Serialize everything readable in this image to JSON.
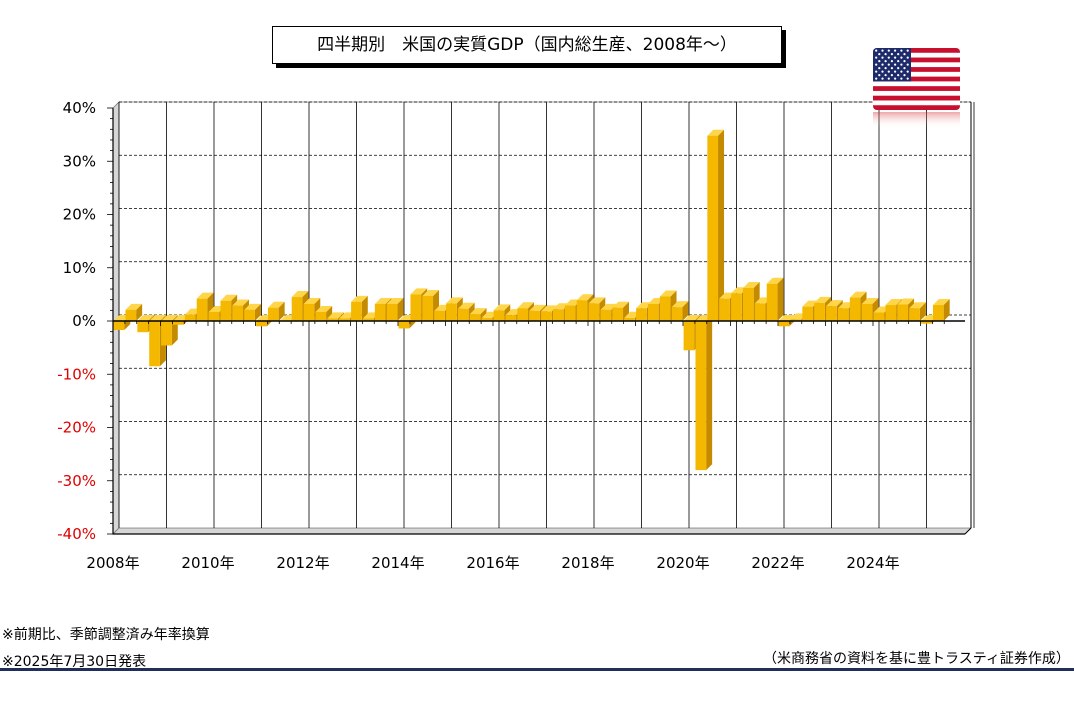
{
  "title": "四半期別　米国の実質GDP（国内総生産、2008年～）",
  "notes": {
    "note1": "※前期比、季節調整済み年率換算",
    "note2": "※2025年7月30日発表",
    "source": "（米商務省の資料を基に豊トラスティ証券作成）"
  },
  "flag_icon": "us-flag-icon",
  "colors": {
    "bar": "#F5B800",
    "bar_side": "#C48A00",
    "negative_tick": "#E00000",
    "rule": "#1f2f5a"
  },
  "chart_data": {
    "type": "bar",
    "title": "四半期別　米国の実質GDP（国内総生産、2008年～）",
    "xlabel": "",
    "ylabel": "",
    "ylim": [
      -40,
      40
    ],
    "yticks": [
      "40%",
      "30%",
      "20%",
      "10%",
      "0%",
      "-10%",
      "-20%",
      "-30%",
      "-40%"
    ],
    "xticks": [
      "2008年",
      "2010年",
      "2012年",
      "2014年",
      "2016年",
      "2018年",
      "2020年",
      "2022年",
      "2024年"
    ],
    "grid": true,
    "legend": "none",
    "categories": [
      "2008Q1",
      "2008Q2",
      "2008Q3",
      "2008Q4",
      "2009Q1",
      "2009Q2",
      "2009Q3",
      "2009Q4",
      "2010Q1",
      "2010Q2",
      "2010Q3",
      "2010Q4",
      "2011Q1",
      "2011Q2",
      "2011Q3",
      "2011Q4",
      "2012Q1",
      "2012Q2",
      "2012Q3",
      "2012Q4",
      "2013Q1",
      "2013Q2",
      "2013Q3",
      "2013Q4",
      "2014Q1",
      "2014Q2",
      "2014Q3",
      "2014Q4",
      "2015Q1",
      "2015Q2",
      "2015Q3",
      "2015Q4",
      "2016Q1",
      "2016Q2",
      "2016Q3",
      "2016Q4",
      "2017Q1",
      "2017Q2",
      "2017Q3",
      "2017Q4",
      "2018Q1",
      "2018Q2",
      "2018Q3",
      "2018Q4",
      "2019Q1",
      "2019Q2",
      "2019Q3",
      "2019Q4",
      "2020Q1",
      "2020Q2",
      "2020Q3",
      "2020Q4",
      "2021Q1",
      "2021Q2",
      "2021Q3",
      "2021Q4",
      "2022Q1",
      "2022Q2",
      "2022Q3",
      "2022Q4",
      "2023Q1",
      "2023Q2",
      "2023Q3",
      "2023Q4",
      "2024Q1",
      "2024Q2",
      "2024Q3",
      "2024Q4",
      "2025Q1",
      "2025Q2"
    ],
    "values": [
      -1.7,
      2.1,
      -2.1,
      -8.5,
      -4.6,
      -0.7,
      1.2,
      4.2,
      1.7,
      3.8,
      2.9,
      2.1,
      -1.0,
      2.5,
      -0.1,
      4.5,
      3.2,
      1.7,
      0.5,
      0.5,
      3.6,
      0.5,
      3.2,
      3.2,
      -1.4,
      5.0,
      4.7,
      1.9,
      3.3,
      2.3,
      1.3,
      0.6,
      2.0,
      1.1,
      2.4,
      1.9,
      1.8,
      2.2,
      2.9,
      3.9,
      3.3,
      2.1,
      2.5,
      0.6,
      2.4,
      3.2,
      4.6,
      2.6,
      -5.5,
      -28.0,
      34.8,
      4.2,
      5.2,
      6.2,
      3.3,
      7.0,
      -1.0,
      0.3,
      2.7,
      3.4,
      2.8,
      2.4,
      4.4,
      3.2,
      1.6,
      3.0,
      3.1,
      2.4,
      -0.5,
      3.0
    ]
  }
}
